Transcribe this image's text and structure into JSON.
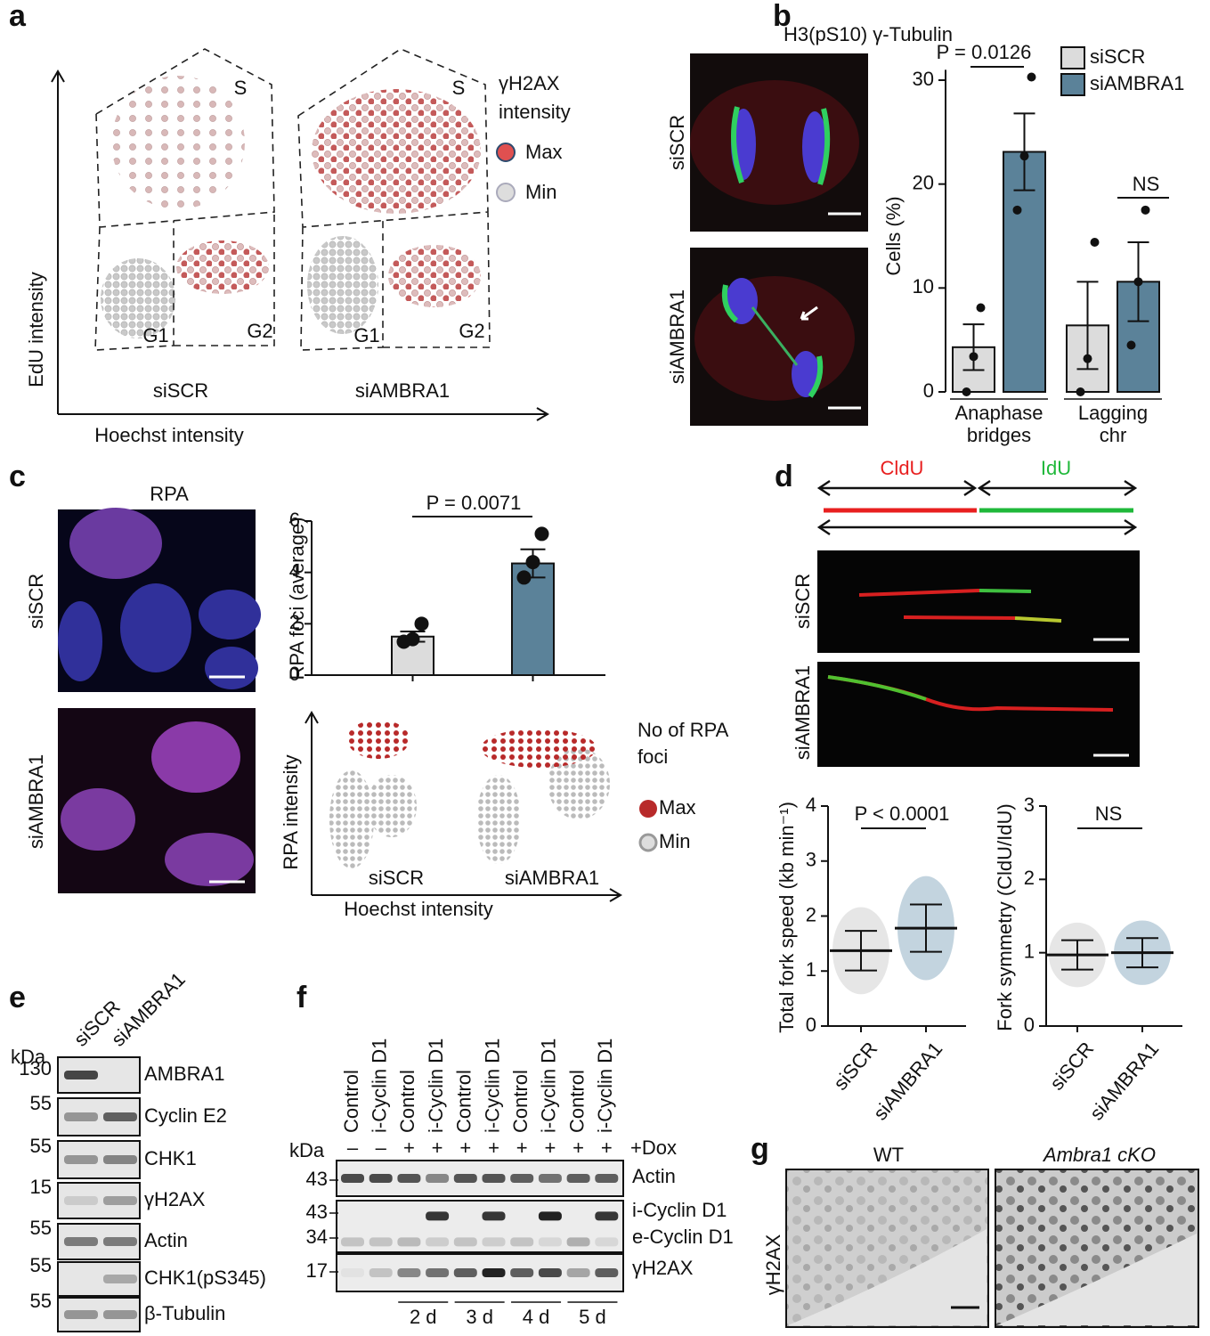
{
  "panels": {
    "a": {
      "label": "a",
      "y_axis": "EdU intensity",
      "x_axis": "Hoechst intensity",
      "legend_title": [
        "γH2AX",
        "intensity"
      ],
      "legend": [
        "Max",
        "Min"
      ],
      "groups": [
        "siSCR",
        "siAMBRA1"
      ],
      "gates": [
        "S",
        "G1",
        "G2"
      ]
    },
    "b": {
      "label": "b",
      "image_title": "H3(pS10) γ-Tubulin",
      "image_rows": [
        "siSCR",
        "siAMBRA1"
      ],
      "chart": {
        "type": "bar",
        "ylabel": "Cells (%)",
        "categories": [
          [
            "Anaphase",
            "bridges"
          ],
          [
            "Lagging",
            "chr"
          ]
        ],
        "series": [
          {
            "name": "siSCR",
            "color": "#dcdcdc",
            "values": [
              4.3,
              6.4
            ],
            "errors": [
              2.2,
              4.2
            ],
            "points": [
              [
                0,
                3.4,
                8.1
              ],
              [
                0,
                3.2,
                14.4
              ]
            ]
          },
          {
            "name": "siAMBRA1",
            "color": "#5b8299",
            "values": [
              23.1,
              10.6
            ],
            "errors": [
              3.7,
              3.8
            ],
            "points": [
              [
                17.5,
                22.7,
                30.3
              ],
              [
                4.5,
                10.6,
                17.5
              ]
            ]
          }
        ],
        "ylim": [
          0,
          31
        ],
        "yticks": [
          0,
          10,
          20,
          30
        ],
        "annotations": [
          "P = 0.0126",
          "NS"
        ]
      }
    },
    "c": {
      "label": "c",
      "image_title": "RPA",
      "image_rows": [
        "siSCR",
        "siAMBRA1"
      ],
      "chart": {
        "type": "bar",
        "ylabel": "RPA foci (average)",
        "values": [
          1.5,
          4.35
        ],
        "colors": [
          "#dcdcdc",
          "#5b8299"
        ],
        "errors": [
          0.2,
          0.55
        ],
        "points": [
          [
            1.3,
            1.4,
            2.0
          ],
          [
            3.8,
            4.4,
            5.5
          ]
        ],
        "ylim": [
          0,
          6
        ],
        "yticks": [
          0,
          2,
          4,
          6
        ],
        "annotation": "P = 0.0071"
      },
      "scatter": {
        "ylabel": "RPA intensity",
        "xlabel": "Hoechst intensity",
        "groups": [
          "siSCR",
          "siAMBRA1"
        ],
        "legend_title": [
          "No of RPA",
          "foci"
        ],
        "legend": [
          "Max",
          "Min"
        ]
      }
    },
    "d": {
      "label": "d",
      "track_labels": [
        "CldU",
        "IdU"
      ],
      "image_rows": [
        "siSCR",
        "siAMBRA1"
      ],
      "charts": [
        {
          "type": "dot",
          "ylabel": "Total fork speed (kb min⁻¹)",
          "categories": [
            "siSCR",
            "siAMBRA1"
          ],
          "colors": [
            "#c8c8c8",
            "#7aa0b8"
          ],
          "means": [
            1.37,
            1.78
          ],
          "sd": [
            0.36,
            0.43
          ],
          "ylim": [
            0,
            4
          ],
          "yticks": [
            0,
            1,
            2,
            3,
            4
          ],
          "annotation": "P < 0.0001"
        },
        {
          "type": "dot",
          "ylabel": "Fork symmetry (CldU/IdU)",
          "categories": [
            "siSCR",
            "siAMBRA1"
          ],
          "colors": [
            "#c8c8c8",
            "#7aa0b8"
          ],
          "means": [
            0.97,
            1.0
          ],
          "sd": [
            0.2,
            0.2
          ],
          "ylim": [
            0,
            3
          ],
          "yticks": [
            0,
            1,
            2,
            3
          ],
          "annotation": "NS"
        }
      ]
    },
    "e": {
      "label": "e",
      "lanes": [
        "siSCR",
        "siAMBRA1"
      ],
      "kda": "kDa",
      "rows": [
        {
          "marker": "130",
          "name": "AMBRA1"
        },
        {
          "marker": "55",
          "name": "Cyclin E2"
        },
        {
          "marker": "55",
          "name": "CHK1"
        },
        {
          "marker": "15",
          "name": "γH2AX"
        },
        {
          "marker": "55",
          "name": "Actin"
        },
        {
          "marker": "55",
          "name": "CHK1(pS345)"
        },
        {
          "marker": "55",
          "name": "β-Tubulin"
        }
      ]
    },
    "f": {
      "label": "f",
      "lanes": [
        "Control",
        "i-Cyclin D1",
        "Control",
        "i-Cyclin D1",
        "Control",
        "i-Cyclin D1",
        "Control",
        "i-Cyclin D1",
        "Control",
        "i-Cyclin D1"
      ],
      "dox": [
        "–",
        "–",
        "+",
        "+",
        "+",
        "+",
        "+",
        "+",
        "+",
        "+"
      ],
      "dox_label": "+Dox",
      "kda": "kDa",
      "blots": [
        {
          "markers": [
            "43"
          ],
          "names": [
            "Actin"
          ]
        },
        {
          "markers": [
            "43",
            "34"
          ],
          "names": [
            "i-Cyclin D1",
            "e-Cyclin D1"
          ]
        },
        {
          "markers": [
            "17"
          ],
          "names": [
            "γH2AX"
          ]
        }
      ],
      "days": [
        "2 d",
        "3 d",
        "4 d",
        "5 d"
      ]
    },
    "g": {
      "label": "g",
      "columns": [
        "WT",
        "Ambra1 cKO"
      ],
      "row": "γH2AX"
    }
  }
}
